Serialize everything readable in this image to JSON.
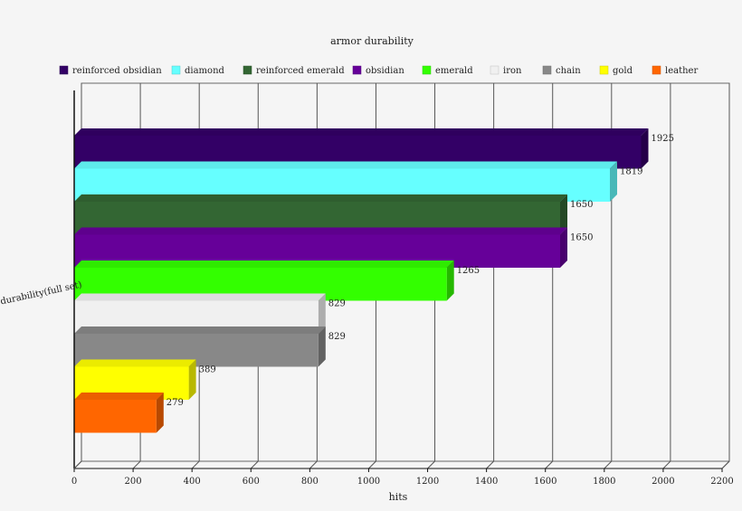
{
  "chart_data": {
    "type": "bar",
    "orientation": "horizontal",
    "style": "3d",
    "title": "armor durability",
    "xlabel": "hits",
    "category_label": "durability(full set)",
    "xlim": [
      0,
      2200
    ],
    "xticks": [
      0,
      200,
      400,
      600,
      800,
      1000,
      1200,
      1400,
      1600,
      1800,
      2000,
      2200
    ],
    "grid": true,
    "legend_position": "top",
    "series": [
      {
        "name": "reinforced obsidian",
        "value": 1925,
        "color": "#330066"
      },
      {
        "name": "diamond",
        "value": 1819,
        "color": "#66ffff"
      },
      {
        "name": "reinforced emerald",
        "value": 1650,
        "color": "#336633"
      },
      {
        "name": "obsidian",
        "value": 1650,
        "color": "#660099"
      },
      {
        "name": "emerald",
        "value": 1265,
        "color": "#33ff00"
      },
      {
        "name": "iron",
        "value": 829,
        "color": "#f0f0f0"
      },
      {
        "name": "chain",
        "value": 829,
        "color": "#888888"
      },
      {
        "name": "gold",
        "value": 389,
        "color": "#ffff00"
      },
      {
        "name": "leather",
        "value": 279,
        "color": "#ff6600"
      }
    ]
  }
}
